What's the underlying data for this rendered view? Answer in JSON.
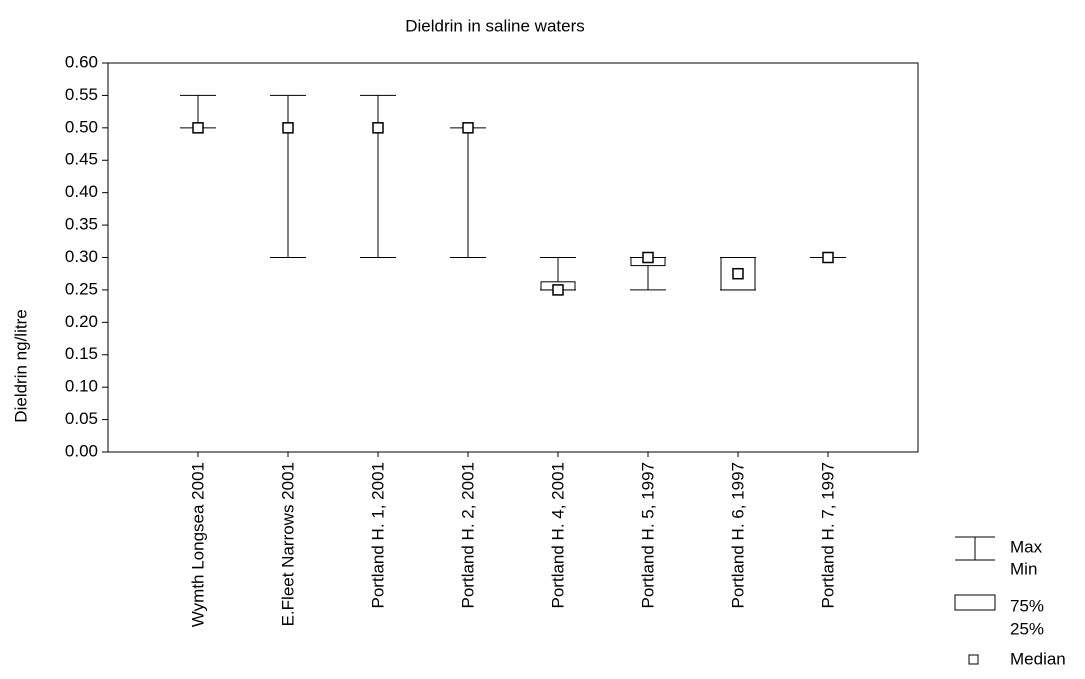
{
  "chart_data": {
    "type": "box",
    "title": "Dieldrin in saline waters",
    "y_label": "Dieldrin ng/litre",
    "categories": [
      "Wymth Longsea 2001",
      "E.Fleet Narrows 2001",
      "Portland H. 1, 2001",
      "Portland H. 2, 2001",
      "Portland H. 4, 2001",
      "Portland H. 5, 1997",
      "Portland H. 6, 1997",
      "Portland H. 7, 1997"
    ],
    "max": [
      0.55,
      0.55,
      0.55,
      0.5,
      0.3,
      0.3,
      0.3,
      0.3
    ],
    "min": [
      0.5,
      0.3,
      0.3,
      0.3,
      0.25,
      0.25,
      0.25,
      0.3
    ],
    "q3": [
      0.5,
      0.5,
      0.5,
      0.5,
      0.2625,
      0.3,
      0.3,
      0.3
    ],
    "q1": [
      0.5,
      0.5,
      0.5,
      0.5,
      0.25,
      0.2875,
      0.25,
      0.3
    ],
    "median": [
      0.5,
      0.5,
      0.5,
      0.5,
      0.25,
      0.3,
      0.275,
      0.3
    ],
    "color": "#000000",
    "ylim": [
      0,
      0.6
    ],
    "yticks": [
      {
        "value": 0,
        "label": "0.00"
      },
      {
        "value": 0.05,
        "label": "0.05"
      },
      {
        "value": 0.1,
        "label": "0.10"
      },
      {
        "value": 0.15,
        "label": "0.15"
      },
      {
        "value": 0.2,
        "label": "0.20"
      },
      {
        "value": 0.25,
        "label": "0.25"
      },
      {
        "value": 0.3,
        "label": "0.30"
      },
      {
        "value": 0.35,
        "label": "0.35"
      },
      {
        "value": 0.4,
        "label": "0.40"
      },
      {
        "value": 0.45,
        "label": "0.45"
      },
      {
        "value": 0.5,
        "label": "0.50"
      },
      {
        "value": 0.55,
        "label": "0.55"
      },
      {
        "value": 0.6,
        "label": "0.60"
      }
    ],
    "legend": {
      "whisker": [
        "Max",
        "Min"
      ],
      "box": [
        "75%",
        "25%"
      ],
      "median": "Median"
    }
  }
}
